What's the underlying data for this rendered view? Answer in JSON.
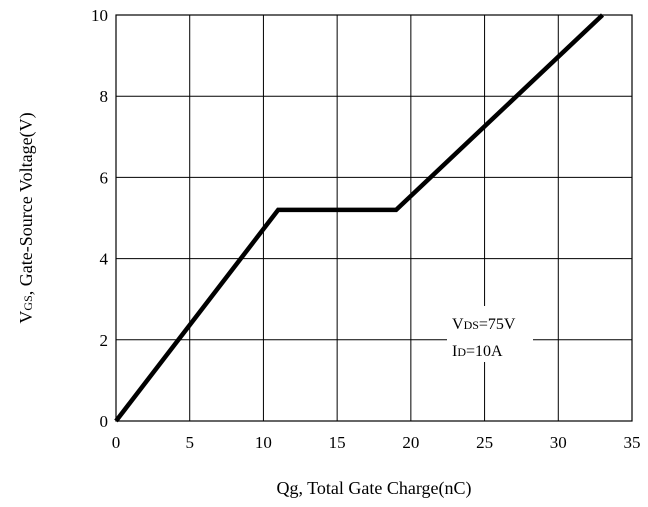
{
  "chart_data": {
    "type": "line",
    "title": "",
    "xlabel": "Qg, Total Gate Charge(nC)",
    "ylabel": "VGS, Gate-Source Voltage(V)",
    "ylabel_parts": {
      "main": "V",
      "sub": "GS",
      "rest": ", Gate-Source Voltage(V)"
    },
    "xlim": [
      0,
      35
    ],
    "ylim": [
      0,
      10
    ],
    "xticks": [
      0,
      5,
      10,
      15,
      20,
      25,
      30,
      35
    ],
    "yticks": [
      0,
      2,
      4,
      6,
      8,
      10
    ],
    "xtick_labels": [
      "0",
      "5",
      "10",
      "15",
      "20",
      "25",
      "30",
      "35"
    ],
    "ytick_labels": [
      "0",
      "2",
      "4",
      "6",
      "8",
      "10"
    ],
    "grid": true,
    "series": [
      {
        "x": [
          0,
          11,
          19,
          33
        ],
        "y": [
          0,
          5.2,
          5.2,
          10
        ]
      }
    ],
    "annotations": [
      {
        "main": "V",
        "sub": "DS",
        "rest": "=75V"
      },
      {
        "main": "I",
        "sub": "D",
        "rest": "=10A"
      }
    ],
    "legend": "none",
    "colors": {
      "line": "#000000",
      "grid": "#000000",
      "background": "#ffffff"
    }
  }
}
